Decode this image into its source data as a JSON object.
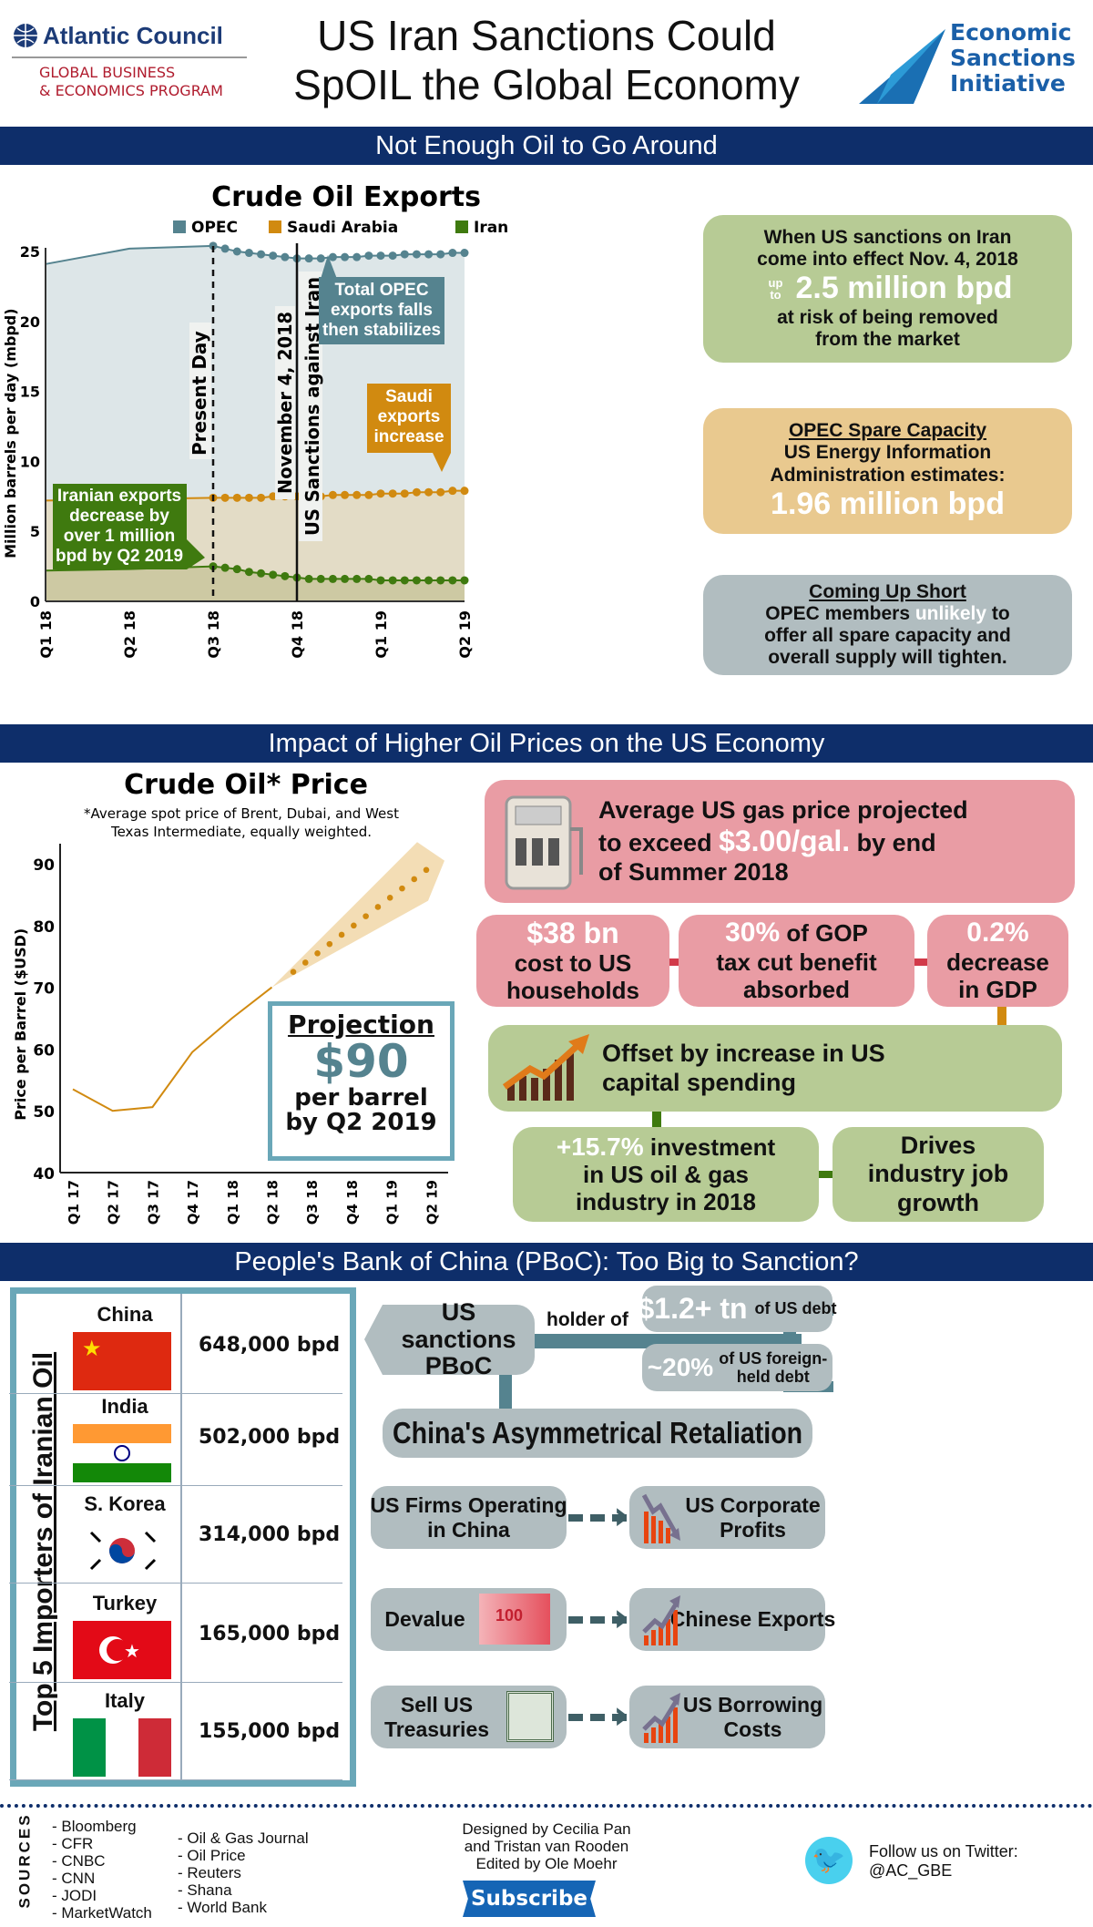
{
  "header": {
    "org_name": "Atlantic Council",
    "program_line1": "GLOBAL BUSINESS",
    "program_line2": "& ECONOMICS PROGRAM",
    "title_line1": "US Iran Sanctions Could",
    "title_line2": "SpOIL the Global Economy",
    "esi_line1": "Economic",
    "esi_line2": "Sanctions",
    "esi_line3": "Initiative"
  },
  "section1": {
    "band": "Not Enough Oil to Go Around",
    "green_box": {
      "line1": "When US sanctions on Iran",
      "line2": "come into effect Nov. 4, 2018",
      "up_to": "up to",
      "amount": "2.5 million bpd",
      "line3": "at risk of being removed",
      "line4": "from the market"
    },
    "tan_box": {
      "heading": "OPEC Spare Capacity",
      "line1": "US Energy Information",
      "line2": "Administration estimates:",
      "amount": "1.96 million bpd"
    },
    "gray_box": {
      "heading": "Coming Up Short",
      "line1a": "OPEC members ",
      "line1b": "unlikely",
      "line1c": " to",
      "line2": "offer all spare capacity and",
      "line3": "overall supply will tighten."
    }
  },
  "section2": {
    "band": "Impact of Higher Oil Prices on the US Economy",
    "gas": {
      "line1": "Average US gas price projected",
      "line2a": "to exceed ",
      "line2b": "$3.00/gal.",
      "line2c": " by end",
      "line3": "of Summer 2018"
    },
    "cost": {
      "big": "$38 bn",
      "l1": "cost to US",
      "l2": "households"
    },
    "gop": {
      "big": "30%",
      "l1": " of GOP",
      "l2": "tax cut benefit",
      "l3": "absorbed"
    },
    "gdp": {
      "big": "0.2%",
      "l1": "decrease",
      "l2": "in GDP"
    },
    "offset": {
      "l1": "Offset by increase in US",
      "l2": "capital spending"
    },
    "invest": {
      "big": "+15.7%",
      "l1": " investment",
      "l2": "in US oil & gas",
      "l3": "industry in 2018"
    },
    "jobs": {
      "l1": "Drives",
      "l2": "industry job",
      "l3": "growth"
    },
    "projection": {
      "heading": "Projection",
      "amount": "$90",
      "l1": "per barrel",
      "l2": "by Q2 2019"
    }
  },
  "section3": {
    "band": "People's Bank of China (PBoC): Too Big to Sanction?",
    "importers_title": "Top 5 Importers of Iranian Oil",
    "importers": [
      {
        "country": "China",
        "bpd": "648,000 bpd"
      },
      {
        "country": "India",
        "bpd": "502,000 bpd"
      },
      {
        "country": "S. Korea",
        "bpd": "314,000 bpd"
      },
      {
        "country": "Turkey",
        "bpd": "165,000 bpd"
      },
      {
        "country": "Italy",
        "bpd": "155,000 bpd"
      }
    ],
    "sanctions": {
      "l1": "US sanctions",
      "l2": "PBoC"
    },
    "holder_of": "holder of",
    "debt1": {
      "big": "$1.2+ tn",
      "small": "of US debt"
    },
    "debt2": {
      "big": "~20%",
      "small1": "of US foreign-",
      "small2": "held debt"
    },
    "retaliation": "China's Asymmetrical Retaliation",
    "rows": [
      {
        "left1": "US Firms Operating",
        "left2": "in China",
        "right1": "US Corporate",
        "right2": "Profits",
        "trend": "down"
      },
      {
        "left1": "Devalue",
        "left2": "",
        "right1": "Chinese Exports",
        "right2": "",
        "trend": "up"
      },
      {
        "left1": "Sell US",
        "left2": "Treasuries",
        "right1": "US Borrowing",
        "right2": "Costs",
        "trend": "up"
      }
    ],
    "banknote_text": "100"
  },
  "footer": {
    "sources_label": "SOURCES",
    "sources_col1": [
      "- Bloomberg",
      "- CFR",
      "- CNBC",
      "- CNN",
      "- JODI",
      "- MarketWatch"
    ],
    "sources_col2": [
      "- Oil & Gas Journal",
      "- Oil Price",
      "- Reuters",
      "- Shana",
      "- World Bank"
    ],
    "credits1": "Designed by Cecilia Pan",
    "credits2": "and Tristan van Rooden",
    "credits3": "Edited by Ole Moehr",
    "subscribe": "Subscribe",
    "twitter1": "Follow us on Twitter:",
    "twitter2": "@AC_GBE"
  },
  "colors": {
    "navy": "#0e2e6a",
    "teal": "#55838f",
    "orange": "#d18a10",
    "green": "#3f7a0f",
    "pink": "#e99ca4",
    "red": "#d23a4a"
  },
  "chart_data": [
    {
      "type": "area",
      "title": "Crude Oil Exports",
      "ylabel": "Million barrels per day (mbpd)",
      "xlabel": "",
      "ylim": [
        0,
        25
      ],
      "yticks": [
        0,
        5,
        10,
        15,
        20,
        25
      ],
      "categories": [
        "Q1 18",
        "Q2 18",
        "Q3 18",
        "Q4 18",
        "Q1 19",
        "Q2 19"
      ],
      "legend": "top",
      "grid": false,
      "series": [
        {
          "name": "OPEC",
          "color": "#55838f",
          "actual": [
            24.1,
            25.2,
            25.4
          ],
          "projection": [
            25.4,
            25.2,
            25.0,
            24.9,
            24.8,
            24.7,
            24.6,
            24.5,
            24.5,
            24.5,
            24.6,
            24.6,
            24.6,
            24.7,
            24.7,
            24.7,
            24.8,
            24.8,
            24.8,
            24.8,
            24.9,
            24.9
          ]
        },
        {
          "name": "Saudi Arabia",
          "color": "#d18a10",
          "actual": [
            7.2,
            7.3,
            7.4
          ],
          "projection": [
            7.4,
            7.4,
            7.4,
            7.4,
            7.4,
            7.5,
            7.5,
            7.5,
            7.5,
            7.5,
            7.6,
            7.6,
            7.6,
            7.6,
            7.7,
            7.7,
            7.7,
            7.8,
            7.8,
            7.8,
            7.9,
            7.9
          ]
        },
        {
          "name": "Iran",
          "color": "#3f7a0f",
          "actual": [
            2.2,
            2.3,
            2.5
          ],
          "projection": [
            2.5,
            2.4,
            2.3,
            2.1,
            2.0,
            1.9,
            1.8,
            1.7,
            1.6,
            1.6,
            1.6,
            1.6,
            1.6,
            1.6,
            1.5,
            1.5,
            1.5,
            1.5,
            1.5,
            1.5,
            1.5,
            1.5
          ]
        }
      ],
      "projection_range": [
        "Q3 18",
        "Q2 19"
      ],
      "markers": [
        {
          "label": "Present Day",
          "x": "Q3 18",
          "style": "dashed"
        },
        {
          "label": "November 4, 2018",
          "label2": "US Sanctions against Iran",
          "x": "Q4 18",
          "style": "solid"
        }
      ],
      "annotations": {
        "opec": "Total OPEC exports falls then stabilizes",
        "opec_l1": "Total OPEC",
        "opec_l2": "exports falls",
        "opec_l3": "then stabilizes",
        "saudi_l1": "Saudi",
        "saudi_l2": "exports",
        "saudi_l3": "increase",
        "iran_l1": "Iranian exports",
        "iran_l2": "decrease by",
        "iran_l3": "over 1 million",
        "iran_l4": "bpd by Q2 2019"
      }
    },
    {
      "type": "line",
      "title": "Crude Oil* Price",
      "subtitle1": "*Average spot price of Brent, Dubai, and West",
      "subtitle2": "Texas Intermediate, equally weighted.",
      "ylabel": "Price per Barrel ($USD)",
      "ylim": [
        40,
        90
      ],
      "yticks": [
        40,
        50,
        60,
        70,
        80,
        90
      ],
      "categories": [
        "Q1 17",
        "Q2 17",
        "Q3 17",
        "Q4 17",
        "Q1 18",
        "Q2 18",
        "Q3 18",
        "Q4 18",
        "Q1 19",
        "Q2 19"
      ],
      "actual": [
        53.5,
        50,
        50.6,
        59.5,
        65,
        70
      ],
      "projection": [
        72.5,
        74,
        75.5,
        77,
        78.5,
        80,
        81.5,
        83,
        84.5,
        86,
        87.5,
        89
      ]
    }
  ]
}
